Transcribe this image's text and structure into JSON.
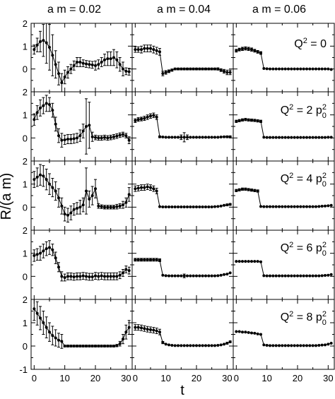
{
  "chart_data": {
    "type": "scatter",
    "xlabel": "t",
    "ylabel": "R/(a m)",
    "xlim": [
      -1,
      32
    ],
    "ylim": [
      -1,
      2
    ],
    "x_ticks": [
      0,
      10,
      20,
      30
    ],
    "y_ticks": [
      -1,
      0,
      1,
      2
    ],
    "grid": false,
    "column_titles": [
      "a m = 0.02",
      "a m = 0.04",
      "a m = 0.06"
    ],
    "row_labels": [
      {
        "base": "Q",
        "sup1": "2",
        "mid": " = 0",
        "sub": "",
        "sup2": ""
      },
      {
        "base": "Q",
        "sup1": "2",
        "mid": " = 2 p",
        "sub": "0",
        "sup2": "2"
      },
      {
        "base": "Q",
        "sup1": "2",
        "mid": " = 4 p",
        "sub": "0",
        "sup2": "2"
      },
      {
        "base": "Q",
        "sup1": "2",
        "mid": " = 6 p",
        "sub": "0",
        "sup2": "2"
      },
      {
        "base": "Q",
        "sup1": "2",
        "mid": " = 8 p",
        "sub": "0",
        "sup2": "2"
      }
    ],
    "panels": [
      [
        {
          "values": [
            0.85,
            1.05,
            1.2,
            1.25,
            1.15,
            0.95,
            0.6,
            0.2,
            -0.2,
            -0.6,
            -0.35,
            -0.15,
            0.0,
            0.15,
            0.3,
            0.3,
            0.25,
            0.22,
            0.2,
            0.18,
            0.15,
            0.2,
            0.3,
            0.4,
            0.45,
            0.45,
            0.5,
            0.4,
            0.2,
            0.0,
            -0.1,
            -0.12
          ],
          "errors": [
            0.2,
            0.3,
            0.45,
            0.7,
            0.9,
            1.0,
            0.9,
            0.6,
            0.5,
            0.4,
            0.3,
            0.25,
            0.2,
            0.2,
            0.2,
            0.2,
            0.15,
            0.15,
            0.15,
            0.15,
            0.2,
            0.2,
            0.2,
            0.25,
            0.3,
            0.3,
            0.35,
            0.35,
            0.3,
            0.3,
            0.15,
            0.15
          ]
        },
        {
          "values": [
            0.85,
            0.85,
            0.85,
            0.9,
            0.9,
            0.9,
            0.85,
            0.8,
            0.75,
            -0.2,
            -0.15,
            -0.1,
            -0.05,
            0,
            0,
            0,
            0,
            0,
            0,
            0,
            0,
            0,
            0,
            0,
            0,
            0,
            0,
            0,
            -0.05,
            -0.1,
            -0.15,
            -0.15
          ],
          "errors": [
            0.12,
            0.12,
            0.15,
            0.15,
            0.15,
            0.15,
            0.15,
            0.15,
            0.15,
            0.1,
            0.08,
            0.06,
            0.05,
            0.04,
            0.04,
            0.04,
            0.04,
            0.04,
            0.04,
            0.04,
            0.04,
            0.04,
            0.04,
            0.04,
            0.04,
            0.04,
            0.04,
            0.05,
            0.06,
            0.08,
            0.1,
            0.1
          ]
        },
        {
          "values": [
            0.8,
            0.85,
            0.88,
            0.9,
            0.88,
            0.85,
            0.8,
            0.75,
            0.7,
            0.02,
            0.01,
            0,
            0,
            0,
            0,
            0,
            0,
            0,
            0,
            0,
            0,
            0,
            0,
            0,
            0,
            0,
            0,
            0,
            0,
            0,
            0,
            -0.02
          ],
          "errors": [
            0.06,
            0.06,
            0.07,
            0.07,
            0.07,
            0.07,
            0.06,
            0.06,
            0.06,
            0.03,
            0.02,
            0.02,
            0.02,
            0.02,
            0.02,
            0.02,
            0.02,
            0.02,
            0.02,
            0.02,
            0.02,
            0.02,
            0.02,
            0.02,
            0.02,
            0.02,
            0.02,
            0.02,
            0.02,
            0.02,
            0.02,
            0.02
          ]
        }
      ],
      [
        {
          "values": [
            0.8,
            1.1,
            1.3,
            1.4,
            1.5,
            1.45,
            1.2,
            0.6,
            0.1,
            -0.1,
            -0.08,
            -0.05,
            -0.05,
            -0.03,
            0.0,
            0.1,
            0.3,
            0.5,
            0.55,
            0.05,
            0.02,
            0.0,
            0.0,
            0.02,
            0.0,
            0.02,
            0.05,
            0.08,
            0.12,
            0.15,
            0.1,
            -0.1
          ],
          "errors": [
            0.25,
            0.3,
            0.35,
            0.35,
            0.35,
            0.3,
            0.3,
            0.3,
            0.3,
            0.3,
            0.2,
            0.2,
            0.2,
            0.2,
            0.2,
            0.25,
            0.3,
            1.2,
            1.0,
            0.2,
            0.1,
            0.1,
            0.1,
            0.1,
            0.1,
            0.1,
            0.1,
            0.1,
            0.1,
            0.1,
            0.1,
            0.15
          ]
        },
        {
          "values": [
            0.75,
            0.8,
            0.82,
            0.85,
            0.9,
            0.95,
            0.98,
            0.9,
            0.05,
            0.04,
            0.03,
            0.03,
            0.03,
            0.03,
            0.03,
            0.03,
            0.03,
            0.03,
            0.03,
            0.03,
            0.03,
            0.03,
            0.03,
            0.03,
            0.03,
            0.03,
            0.03,
            0.03,
            0.04,
            0.05,
            0.05,
            0.05
          ],
          "errors": [
            0.08,
            0.08,
            0.08,
            0.09,
            0.1,
            0.1,
            0.1,
            0.1,
            0.04,
            0.03,
            0.03,
            0.03,
            0.03,
            0.03,
            0.03,
            0.1,
            0.2,
            0.1,
            0.03,
            0.03,
            0.03,
            0.03,
            0.03,
            0.03,
            0.03,
            0.03,
            0.03,
            0.03,
            0.03,
            0.03,
            0.04,
            0.04
          ]
        },
        {
          "values": [
            0.72,
            0.75,
            0.78,
            0.8,
            0.78,
            0.77,
            0.76,
            0.74,
            0.72,
            0.03,
            0.02,
            0.02,
            0.02,
            0.02,
            0.02,
            0.02,
            0.02,
            0.02,
            0.02,
            0.02,
            0.02,
            0.02,
            0.02,
            0.02,
            0.02,
            0.02,
            0.02,
            0.02,
            0.02,
            0.02,
            0.03,
            0.03
          ],
          "errors": [
            0.05,
            0.05,
            0.05,
            0.05,
            0.05,
            0.05,
            0.05,
            0.05,
            0.05,
            0.02,
            0.02,
            0.02,
            0.02,
            0.02,
            0.02,
            0.02,
            0.02,
            0.02,
            0.02,
            0.02,
            0.02,
            0.02,
            0.02,
            0.02,
            0.02,
            0.02,
            0.02,
            0.02,
            0.02,
            0.02,
            0.02,
            0.02
          ]
        }
      ],
      [
        {
          "values": [
            1.2,
            1.3,
            1.4,
            1.35,
            1.2,
            1.0,
            0.85,
            0.7,
            0.4,
            0.05,
            -0.3,
            -0.35,
            -0.25,
            -0.1,
            -0.05,
            0.0,
            0.1,
            0.7,
            0.35,
            0.5,
            0.8,
            0.05,
            0.02,
            0.0,
            0.0,
            0.0,
            0.0,
            0.02,
            0.05,
            0.1,
            0.2,
            0.55
          ],
          "errors": [
            0.35,
            0.4,
            0.45,
            0.45,
            0.45,
            0.45,
            0.4,
            0.4,
            0.4,
            0.35,
            0.3,
            0.3,
            0.3,
            0.25,
            0.25,
            0.3,
            0.3,
            1.0,
            0.35,
            0.4,
            0.4,
            0.1,
            0.08,
            0.08,
            0.08,
            0.08,
            0.08,
            0.1,
            0.1,
            0.15,
            0.2,
            0.3
          ]
        },
        {
          "values": [
            0.8,
            0.82,
            0.85,
            0.85,
            0.88,
            0.85,
            0.8,
            0.7,
            0.02,
            0.01,
            0.01,
            0.01,
            0.01,
            0.01,
            0.01,
            0.01,
            0.01,
            0.01,
            0.01,
            0.01,
            0.01,
            0.01,
            0.01,
            0.01,
            0.01,
            0.01,
            0.02,
            0.03,
            0.05,
            0.08,
            0.1,
            0.12
          ],
          "errors": [
            0.12,
            0.12,
            0.12,
            0.12,
            0.12,
            0.12,
            0.12,
            0.12,
            0.03,
            0.03,
            0.03,
            0.03,
            0.03,
            0.03,
            0.03,
            0.03,
            0.03,
            0.03,
            0.03,
            0.03,
            0.03,
            0.03,
            0.03,
            0.03,
            0.03,
            0.03,
            0.03,
            0.03,
            0.03,
            0.03,
            0.04,
            0.04
          ]
        },
        {
          "values": [
            0.72,
            0.75,
            0.78,
            0.78,
            0.76,
            0.74,
            0.72,
            0.7,
            0.03,
            0.02,
            0.02,
            0.02,
            0.02,
            0.02,
            0.02,
            0.02,
            0.02,
            0.02,
            0.02,
            0.02,
            0.02,
            0.02,
            0.02,
            0.02,
            0.02,
            0.02,
            0.02,
            0.03,
            0.04,
            0.05,
            0.06,
            0.08
          ],
          "errors": [
            0.05,
            0.05,
            0.05,
            0.05,
            0.05,
            0.05,
            0.05,
            0.05,
            0.02,
            0.02,
            0.02,
            0.02,
            0.02,
            0.02,
            0.02,
            0.02,
            0.02,
            0.02,
            0.02,
            0.02,
            0.02,
            0.02,
            0.02,
            0.02,
            0.02,
            0.02,
            0.02,
            0.02,
            0.02,
            0.02,
            0.02,
            0.02
          ]
        }
      ],
      [
        {
          "values": [
            0.9,
            0.95,
            1.0,
            1.1,
            1.2,
            1.25,
            1.15,
            0.8,
            0.4,
            0.0,
            -0.05,
            0.0,
            0.0,
            -0.02,
            0.0,
            0.0,
            0.02,
            0.0,
            -0.02,
            -0.02,
            0.02,
            0.0,
            0.02,
            0.0,
            0.0,
            0.0,
            0.0,
            0.0,
            0.05,
            0.15,
            0.3,
            0.25
          ],
          "errors": [
            0.25,
            0.25,
            0.3,
            0.3,
            0.3,
            0.3,
            0.25,
            0.25,
            0.2,
            0.2,
            0.15,
            0.15,
            0.15,
            0.15,
            0.15,
            0.15,
            0.15,
            0.15,
            0.15,
            0.15,
            0.15,
            0.15,
            0.15,
            0.15,
            0.15,
            0.15,
            0.15,
            0.15,
            0.15,
            0.15,
            0.15,
            0.15
          ]
        },
        {
          "values": [
            0.72,
            0.72,
            0.72,
            0.72,
            0.72,
            0.72,
            0.72,
            0.72,
            0.7,
            0.05,
            0.03,
            0.02,
            0.02,
            0.02,
            0.02,
            0.02,
            0.02,
            0.02,
            0.02,
            0.02,
            0.02,
            0.02,
            0.02,
            0.02,
            0.02,
            0.02,
            0.02,
            0.03,
            0.05,
            0.08,
            0.1,
            0.15
          ],
          "errors": [
            0.06,
            0.06,
            0.06,
            0.06,
            0.06,
            0.06,
            0.06,
            0.06,
            0.06,
            0.03,
            0.03,
            0.03,
            0.03,
            0.03,
            0.03,
            0.03,
            0.08,
            0.03,
            0.03,
            0.03,
            0.03,
            0.03,
            0.03,
            0.03,
            0.03,
            0.03,
            0.03,
            0.03,
            0.03,
            0.03,
            0.03,
            0.03
          ]
        },
        {
          "values": [
            0.65,
            0.65,
            0.65,
            0.65,
            0.65,
            0.65,
            0.65,
            0.65,
            0.63,
            0.03,
            0.02,
            0.02,
            0.02,
            0.02,
            0.02,
            0.02,
            0.02,
            0.02,
            0.02,
            0.02,
            0.02,
            0.02,
            0.02,
            0.02,
            0.02,
            0.02,
            0.02,
            0.02,
            0.03,
            0.04,
            0.05,
            0.08
          ],
          "errors": [
            0.03,
            0.03,
            0.03,
            0.03,
            0.03,
            0.03,
            0.03,
            0.03,
            0.03,
            0.02,
            0.02,
            0.02,
            0.02,
            0.02,
            0.02,
            0.02,
            0.02,
            0.02,
            0.02,
            0.02,
            0.02,
            0.02,
            0.02,
            0.02,
            0.02,
            0.02,
            0.02,
            0.02,
            0.02,
            0.02,
            0.02,
            0.02
          ]
        }
      ],
      [
        {
          "values": [
            1.6,
            1.4,
            1.2,
            1.0,
            0.8,
            0.6,
            0.45,
            0.35,
            0.25,
            0.2,
            0.0,
            0.0,
            0.0,
            0.0,
            0.0,
            0.0,
            0.0,
            0.0,
            0.0,
            0.0,
            0.0,
            0.0,
            0.0,
            0.0,
            0.0,
            0.0,
            0.0,
            0.02,
            0.1,
            0.3,
            0.6,
            0.8
          ],
          "errors": [
            0.5,
            0.5,
            0.5,
            0.5,
            0.45,
            0.4,
            0.4,
            0.35,
            0.3,
            0.3,
            0.04,
            0.04,
            0.04,
            0.04,
            0.04,
            0.04,
            0.04,
            0.04,
            0.04,
            0.04,
            0.04,
            0.04,
            0.04,
            0.04,
            0.04,
            0.04,
            0.04,
            0.05,
            0.1,
            0.2,
            0.3,
            0.3
          ]
        },
        {
          "values": [
            0.8,
            0.8,
            0.78,
            0.75,
            0.72,
            0.7,
            0.68,
            0.65,
            0.6,
            0.15,
            0.08,
            0.05,
            0.03,
            0.02,
            0.02,
            0.02,
            0.02,
            0.02,
            0.02,
            0.02,
            0.02,
            0.02,
            0.02,
            0.02,
            0.02,
            0.02,
            0.02,
            0.03,
            0.05,
            0.08,
            0.12,
            0.18
          ],
          "errors": [
            0.12,
            0.12,
            0.12,
            0.12,
            0.12,
            0.12,
            0.12,
            0.12,
            0.12,
            0.05,
            0.03,
            0.03,
            0.03,
            0.03,
            0.03,
            0.03,
            0.03,
            0.03,
            0.03,
            0.03,
            0.03,
            0.03,
            0.03,
            0.03,
            0.03,
            0.03,
            0.03,
            0.03,
            0.03,
            0.03,
            0.04,
            0.04
          ]
        },
        {
          "values": [
            0.62,
            0.62,
            0.6,
            0.6,
            0.58,
            0.56,
            0.55,
            0.52,
            0.5,
            0.05,
            0.03,
            0.02,
            0.02,
            0.02,
            0.02,
            0.02,
            0.02,
            0.02,
            0.02,
            0.02,
            0.02,
            0.02,
            0.02,
            0.02,
            0.02,
            0.02,
            0.02,
            0.03,
            0.04,
            0.05,
            0.08,
            0.12
          ],
          "errors": [
            0.03,
            0.03,
            0.03,
            0.03,
            0.03,
            0.03,
            0.03,
            0.03,
            0.03,
            0.02,
            0.02,
            0.02,
            0.02,
            0.02,
            0.02,
            0.02,
            0.02,
            0.02,
            0.02,
            0.02,
            0.02,
            0.02,
            0.02,
            0.02,
            0.02,
            0.02,
            0.02,
            0.02,
            0.02,
            0.02,
            0.02,
            0.02
          ]
        }
      ]
    ]
  }
}
